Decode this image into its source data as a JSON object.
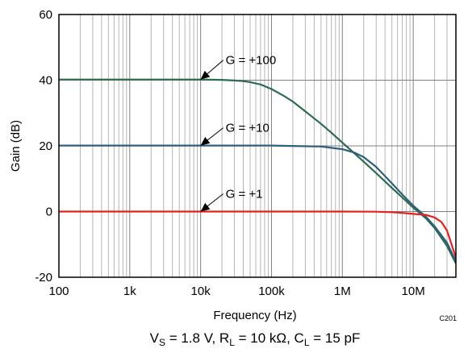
{
  "chart_data": {
    "type": "line",
    "title": "",
    "xlabel": "Frequency (Hz)",
    "ylabel": "Gain (dB)",
    "x_scale": "log",
    "xlim": [
      100,
      40000000
    ],
    "ylim": [
      -20,
      60
    ],
    "x_ticks": [
      {
        "value": 100,
        "label": "100"
      },
      {
        "value": 1000,
        "label": "1k"
      },
      {
        "value": 10000,
        "label": "10k"
      },
      {
        "value": 100000,
        "label": "100k"
      },
      {
        "value": 1000000,
        "label": "1M"
      },
      {
        "value": 10000000,
        "label": "10M"
      }
    ],
    "y_ticks": [
      {
        "value": -20,
        "label": "-20"
      },
      {
        "value": 0,
        "label": "0"
      },
      {
        "value": 20,
        "label": "20"
      },
      {
        "value": 40,
        "label": "40"
      },
      {
        "value": 60,
        "label": "60"
      }
    ],
    "grid": true,
    "legend": "none",
    "series": [
      {
        "color": "#2e6b4f",
        "x": [
          100,
          10000,
          20000,
          30000,
          40000,
          50000,
          70000,
          100000,
          150000,
          200000,
          300000,
          500000,
          700000,
          1000000,
          2000000,
          3000000,
          5000000,
          7000000,
          10000000,
          15000000,
          20000000,
          30000000,
          40000000
        ],
        "y": [
          40.2,
          40.2,
          40.1,
          39.9,
          39.7,
          39.4,
          38.7,
          37.3,
          35.2,
          33.5,
          30.5,
          26.7,
          24.0,
          21.0,
          15.2,
          11.7,
          7.2,
          4.3,
          1.2,
          -2.0,
          -5.0,
          -10.5,
          -15.8
        ]
      },
      {
        "color": "#2f5f7f",
        "x": [
          100,
          10000,
          100000,
          500000,
          1000000,
          1500000,
          2000000,
          3000000,
          5000000,
          7000000,
          10000000,
          15000000,
          20000000,
          30000000,
          40000000
        ],
        "y": [
          20.1,
          20.1,
          20.1,
          19.8,
          19.0,
          17.9,
          16.6,
          13.6,
          8.6,
          5.2,
          1.8,
          -1.5,
          -4.5,
          -9.5,
          -15.2
        ]
      },
      {
        "color": "#e8211e",
        "x": [
          100,
          10000,
          1000000,
          3000000,
          5000000,
          7000000,
          10000000,
          15000000,
          20000000,
          25000000,
          30000000,
          40000000
        ],
        "y": [
          0,
          0,
          0,
          -0.05,
          -0.2,
          -0.4,
          -0.7,
          -1.0,
          -1.8,
          -3.2,
          -5.8,
          -14.0
        ]
      }
    ],
    "annotations": [
      {
        "text": "G = +100",
        "arrow_to": {
          "x": 10000,
          "y": 40.2
        }
      },
      {
        "text": "G = +10",
        "arrow_to": {
          "x": 10000,
          "y": 20.1
        }
      },
      {
        "text": "G = +1",
        "arrow_to": {
          "x": 10000,
          "y": 0
        }
      }
    ],
    "figure_code": "C201"
  },
  "conditions": {
    "prefix_v": "V",
    "sub_s": "S",
    "part1": " = 1.8 V, R",
    "sub_l1": "L",
    "part2": " = 10 kΩ, C",
    "sub_l2": "L",
    "part3": " = 15 pF"
  }
}
